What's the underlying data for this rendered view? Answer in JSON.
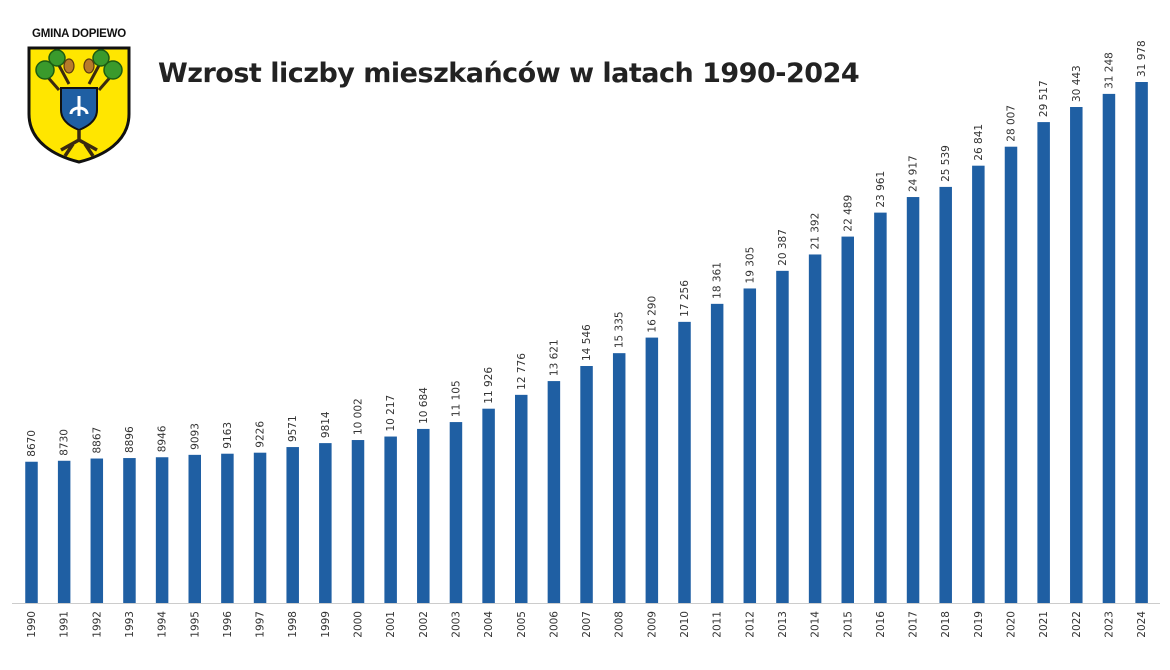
{
  "logo": {
    "text": "GMINA DOPIEWO",
    "name": "coat-of-arms-icon"
  },
  "chart_data": {
    "type": "bar",
    "title": "Wzrost liczby mieszkańców w latach 1990-2024",
    "categories": [
      "1990",
      "1991",
      "1992",
      "1993",
      "1994",
      "1995",
      "1996",
      "1997",
      "1998",
      "1999",
      "2000",
      "2001",
      "2002",
      "2003",
      "2004",
      "2005",
      "2006",
      "2007",
      "2008",
      "2009",
      "2010",
      "2011",
      "2012",
      "2013",
      "2014",
      "2015",
      "2016",
      "2017",
      "2018",
      "2019",
      "2020",
      "2021",
      "2022",
      "2023",
      "2024"
    ],
    "values": [
      8670,
      8730,
      8867,
      8896,
      8946,
      9093,
      9163,
      9226,
      9571,
      9814,
      10002,
      10217,
      10684,
      11105,
      11926,
      12776,
      13621,
      14546,
      15335,
      16290,
      17256,
      18361,
      19305,
      20387,
      21392,
      22489,
      23961,
      24917,
      25539,
      26841,
      28007,
      29517,
      30443,
      31248,
      31978
    ],
    "labels": [
      "8670",
      "8730",
      "8867",
      "8896",
      "8946",
      "9093",
      "9163",
      "9226",
      "9571",
      "9814",
      "10 002",
      "10 217",
      "10 684",
      "11 105",
      "11 926",
      "12 776",
      "13 621",
      "14 546",
      "15 335",
      "16 290",
      "17 256",
      "18 361",
      "19 305",
      "20 387",
      "21 392",
      "22 489",
      "23 961",
      "24 917",
      "25 539",
      "26 841",
      "28 007",
      "29 517",
      "30 443",
      "31 248",
      "31 978"
    ],
    "xlabel": "",
    "ylabel": "",
    "ylim": [
      0,
      32000
    ],
    "grid": false,
    "colors": {
      "bar": "#1f5fa3",
      "text": "#333333",
      "baseline": "#cccccc"
    }
  }
}
